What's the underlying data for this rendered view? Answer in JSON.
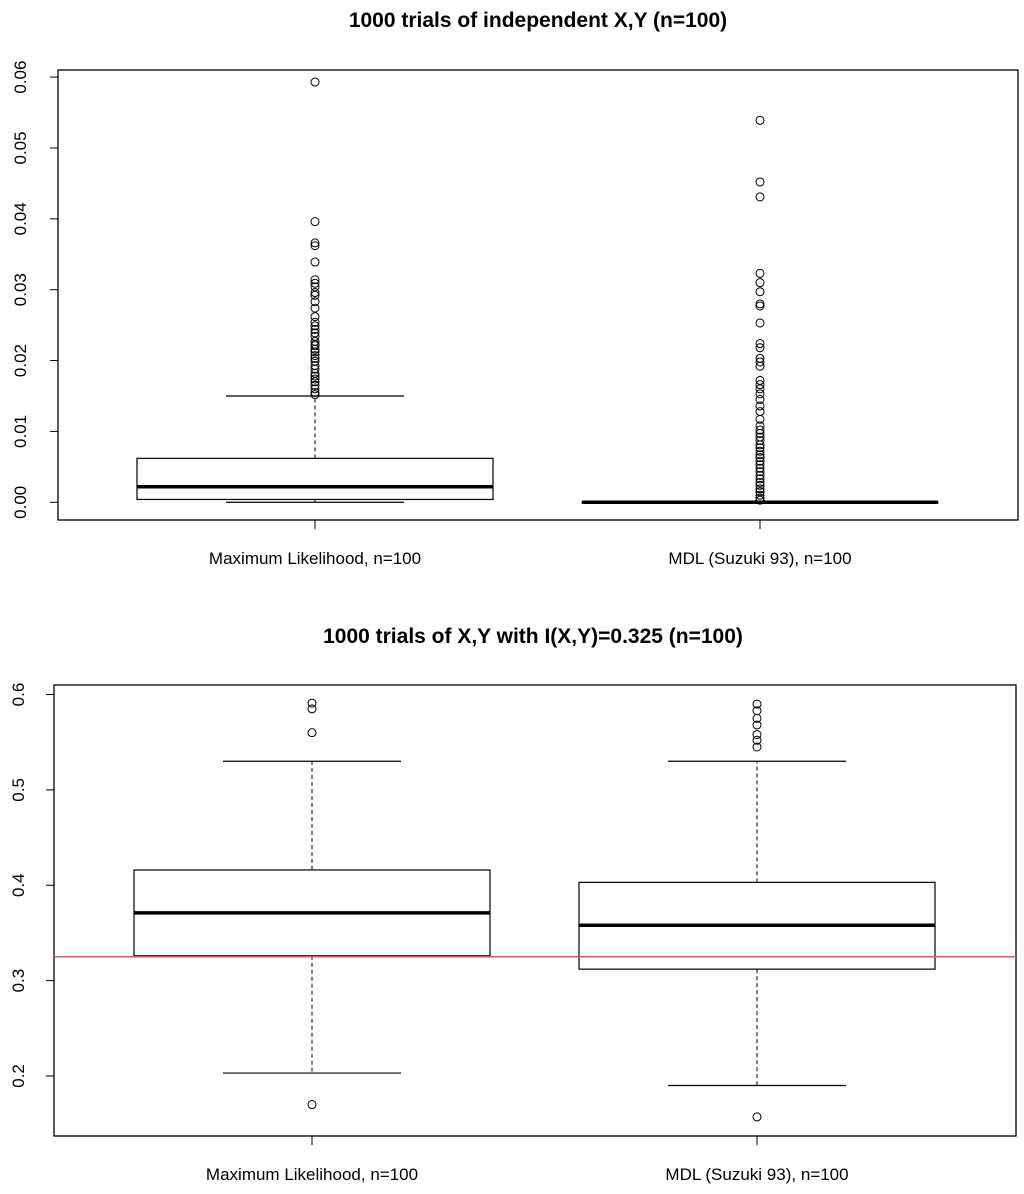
{
  "chart_data": [
    {
      "type": "boxplot",
      "title": "1000 trials of independent X,Y (n=100)",
      "xlabel": "",
      "ylabel": "",
      "ylim": [
        -0.0025,
        0.061
      ],
      "yticks": [
        0.0,
        0.01,
        0.02,
        0.03,
        0.04,
        0.05,
        0.06
      ],
      "ytick_labels": [
        "0.00",
        "0.01",
        "0.02",
        "0.03",
        "0.04",
        "0.05",
        "0.06"
      ],
      "categories": [
        "Maximum Likelihood, n=100",
        "MDL (Suzuki 93), n=100"
      ],
      "boxes": [
        {
          "name": "Maximum Likelihood, n=100",
          "whisker_low": 0.0,
          "q1": 0.0004,
          "median": 0.0022,
          "q3": 0.0062,
          "whisker_high": 0.015,
          "outliers": [
            0.0593,
            0.0396,
            0.0366,
            0.0362,
            0.0339,
            0.0314,
            0.0309,
            0.0304,
            0.0296,
            0.0292,
            0.0283,
            0.0274,
            0.0262,
            0.0254,
            0.0249,
            0.0244,
            0.0239,
            0.0234,
            0.0227,
            0.0223,
            0.0221,
            0.0216,
            0.0212,
            0.0207,
            0.0203,
            0.0199,
            0.0193,
            0.0188,
            0.0182,
            0.0178,
            0.0174,
            0.017,
            0.0165,
            0.016,
            0.0155,
            0.0152
          ]
        },
        {
          "name": "MDL (Suzuki 93), n=100",
          "whisker_low": 0.0,
          "q1": 0.0,
          "median": 0.0,
          "q3": 0.0,
          "whisker_high": 0.0,
          "outliers": [
            0.0539,
            0.0452,
            0.0431,
            0.0323,
            0.031,
            0.0297,
            0.028,
            0.0277,
            0.0253,
            0.0224,
            0.0218,
            0.0203,
            0.0198,
            0.0192,
            0.0172,
            0.0166,
            0.016,
            0.0153,
            0.0145,
            0.0136,
            0.0128,
            0.0117,
            0.0108,
            0.0102,
            0.0097,
            0.0092,
            0.0087,
            0.0081,
            0.0077,
            0.0072,
            0.0067,
            0.0063,
            0.0058,
            0.0053,
            0.0048,
            0.0043,
            0.0038,
            0.0033,
            0.0028,
            0.0024,
            0.0019,
            0.0015,
            0.001,
            0.0006,
            0.0003
          ]
        }
      ],
      "reference_line": null
    },
    {
      "type": "boxplot",
      "title": "1000 trials of X,Y with I(X,Y)=0.325 (n=100)",
      "xlabel": "",
      "ylabel": "",
      "ylim": [
        0.137,
        0.61
      ],
      "yticks": [
        0.2,
        0.3,
        0.4,
        0.5,
        0.6
      ],
      "ytick_labels": [
        "0.2",
        "0.3",
        "0.4",
        "0.5",
        "0.6"
      ],
      "categories": [
        "Maximum Likelihood, n=100",
        "MDL (Suzuki 93), n=100"
      ],
      "boxes": [
        {
          "name": "Maximum Likelihood, n=100",
          "whisker_low": 0.203,
          "q1": 0.326,
          "median": 0.371,
          "q3": 0.416,
          "whisker_high": 0.53,
          "outliers": [
            0.591,
            0.585,
            0.56,
            0.17
          ]
        },
        {
          "name": "MDL (Suzuki 93), n=100",
          "whisker_low": 0.19,
          "q1": 0.312,
          "median": 0.358,
          "q3": 0.403,
          "whisker_high": 0.53,
          "outliers": [
            0.59,
            0.583,
            0.575,
            0.568,
            0.558,
            0.552,
            0.545,
            0.157
          ]
        }
      ],
      "reference_line": {
        "y": 0.325,
        "color": "#DF536B"
      }
    }
  ]
}
